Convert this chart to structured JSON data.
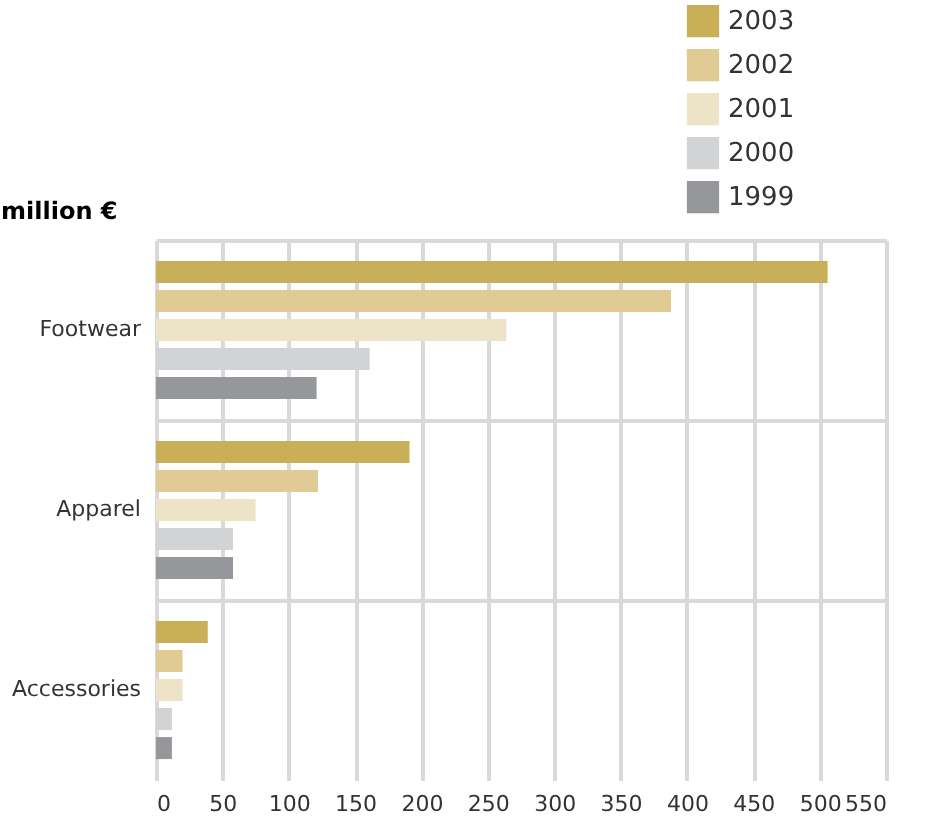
{
  "chart_data": {
    "type": "bar",
    "orientation": "horizontal",
    "ylabel": "million €",
    "categories": [
      "Footwear",
      "Apparel",
      "Accessories"
    ],
    "series": [
      {
        "name": "2003",
        "color": "#c9b058",
        "values": [
          506,
          191,
          39
        ]
      },
      {
        "name": "2002",
        "color": "#dfcb93",
        "values": [
          388,
          122,
          20
        ]
      },
      {
        "name": "2001",
        "color": "#ede3c6",
        "values": [
          264,
          75,
          20
        ]
      },
      {
        "name": "2000",
        "color": "#d2d3d5",
        "values": [
          161,
          58,
          12
        ]
      },
      {
        "name": "1999",
        "color": "#96979b",
        "values": [
          121,
          58,
          12
        ]
      }
    ],
    "xlim": [
      0,
      550
    ],
    "xticks": [
      0,
      50,
      100,
      150,
      200,
      250,
      300,
      350,
      400,
      450,
      500,
      550
    ],
    "grid": true,
    "legend": "top right"
  }
}
